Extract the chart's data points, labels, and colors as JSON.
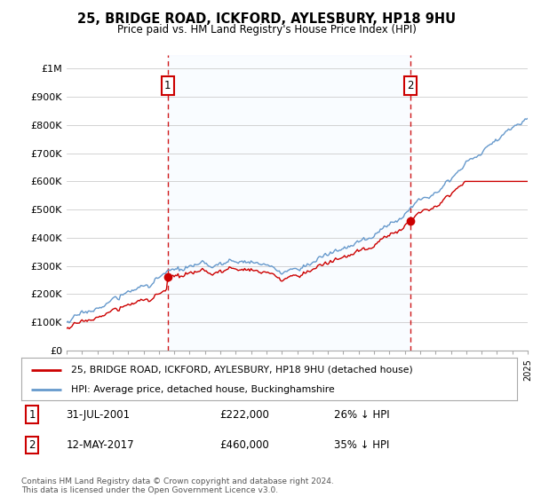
{
  "title": "25, BRIDGE ROAD, ICKFORD, AYLESBURY, HP18 9HU",
  "subtitle": "Price paid vs. HM Land Registry's House Price Index (HPI)",
  "legend_label_red": "25, BRIDGE ROAD, ICKFORD, AYLESBURY, HP18 9HU (detached house)",
  "legend_label_blue": "HPI: Average price, detached house, Buckinghamshire",
  "annotation1_date": "31-JUL-2001",
  "annotation1_price": "£222,000",
  "annotation1_pct": "26% ↓ HPI",
  "annotation2_date": "12-MAY-2017",
  "annotation2_price": "£460,000",
  "annotation2_pct": "35% ↓ HPI",
  "footnote": "Contains HM Land Registry data © Crown copyright and database right 2024.\nThis data is licensed under the Open Government Licence v3.0.",
  "red_color": "#cc0000",
  "blue_color": "#6699cc",
  "vline_color": "#cc0000",
  "shade_color": "#ddeeff",
  "background_color": "#ffffff",
  "grid_color": "#cccccc",
  "ylim": [
    0,
    1050000
  ],
  "yticks": [
    0,
    100000,
    200000,
    300000,
    400000,
    500000,
    600000,
    700000,
    800000,
    900000,
    1000000
  ],
  "ytick_labels": [
    "£0",
    "£100K",
    "£200K",
    "£300K",
    "£400K",
    "£500K",
    "£600K",
    "£700K",
    "£800K",
    "£900K",
    "£1M"
  ],
  "x_start_year": 1995,
  "x_end_year": 2025,
  "sale1_year": 2001.58,
  "sale2_year": 2017.37,
  "sale1_price": 222000,
  "sale2_price": 460000
}
